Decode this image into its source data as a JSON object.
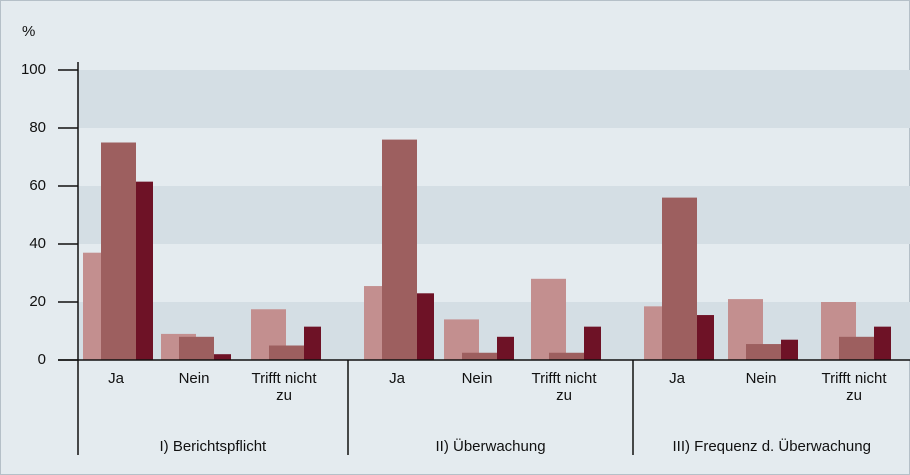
{
  "chart_data": {
    "type": "bar",
    "y_label": "%",
    "groups": [
      "I) Berichtspflicht",
      "II) Überwachung",
      "III) Frequenz d. Überwachung"
    ],
    "categories": [
      "Ja",
      "Nein",
      "Trifft nicht zu",
      "Ja",
      "Nein",
      "Trifft nicht zu",
      "Ja",
      "Nein",
      "Trifft nicht zu"
    ],
    "series": [
      {
        "color": "#c38f8f",
        "values": [
          37,
          9,
          17.5,
          25.5,
          14,
          28,
          18.5,
          21,
          20
        ]
      },
      {
        "color": "#9d5f5f",
        "values": [
          75,
          8,
          5,
          76,
          2.5,
          2.5,
          56,
          5.5,
          8
        ]
      },
      {
        "color": "#6e1226",
        "values": [
          61.5,
          2,
          11.5,
          23,
          8,
          11.5,
          15.5,
          7,
          11.5
        ]
      }
    ],
    "ylim": [
      0,
      100
    ],
    "yticks": [
      0,
      20,
      40,
      60,
      80,
      100
    ],
    "grid": true
  }
}
